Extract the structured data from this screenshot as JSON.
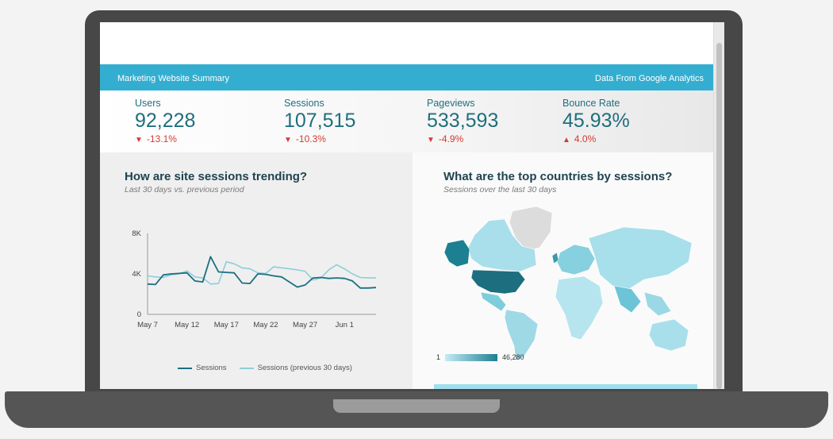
{
  "header": {
    "title": "Marketing Website Summary",
    "source": "Data From Google Analytics"
  },
  "kpis": [
    {
      "label": "Users",
      "value": "92,228",
      "delta": "-13.1%",
      "direction": "down"
    },
    {
      "label": "Sessions",
      "value": "107,515",
      "delta": "-10.3%",
      "direction": "down"
    },
    {
      "label": "Pageviews",
      "value": "533,593",
      "delta": "-4.9%",
      "direction": "down"
    },
    {
      "label": "Bounce Rate",
      "value": "45.93%",
      "delta": "4.0%",
      "direction": "up"
    }
  ],
  "trend": {
    "title": "How are site sessions trending?",
    "subtitle": "Last 30 days vs. previous period",
    "legend": [
      "Sessions",
      "Sessions (previous 30 days)"
    ]
  },
  "countries": {
    "title": "What are the top countries by sessions?",
    "subtitle": "Sessions over the last 30 days",
    "scale_min": "1",
    "scale_max": "46,280"
  },
  "colors": {
    "accent": "#34aed0",
    "sessions": "#1d6f80",
    "previous": "#8dcfd8",
    "negative": "#d63a2f"
  },
  "chart_data": {
    "type": "line",
    "x": [
      "May 7",
      "May 8",
      "May 9",
      "May 10",
      "May 11",
      "May 12",
      "May 13",
      "May 14",
      "May 15",
      "May 16",
      "May 17",
      "May 18",
      "May 19",
      "May 20",
      "May 21",
      "May 22",
      "May 23",
      "May 24",
      "May 25",
      "May 26",
      "May 27",
      "May 28",
      "May 29",
      "May 30",
      "May 31",
      "Jun 1",
      "Jun 2",
      "Jun 3",
      "Jun 4",
      "Jun 5"
    ],
    "x_ticks": [
      "May 7",
      "May 12",
      "May 17",
      "May 22",
      "May 27",
      "Jun 1"
    ],
    "y_ticks": [
      "0",
      "4K",
      "8K"
    ],
    "ylim": [
      0,
      8000
    ],
    "series": [
      {
        "name": "Sessions",
        "values": [
          3000,
          2950,
          3900,
          4000,
          4050,
          4100,
          3300,
          3200,
          5700,
          4200,
          4150,
          4100,
          3100,
          3050,
          4000,
          3950,
          3800,
          3700,
          3200,
          2700,
          2900,
          3600,
          3650,
          3550,
          3600,
          3550,
          3300,
          2600,
          2600,
          2650
        ]
      },
      {
        "name": "Sessions (previous 30 days)",
        "values": [
          3800,
          3700,
          3650,
          3900,
          4000,
          4300,
          3700,
          3600,
          3000,
          3050,
          5200,
          5000,
          4600,
          4500,
          4100,
          4050,
          4700,
          4600,
          4500,
          4400,
          4250,
          3400,
          3600,
          4400,
          4900,
          4500,
          4000,
          3650,
          3600,
          3600
        ]
      }
    ]
  }
}
